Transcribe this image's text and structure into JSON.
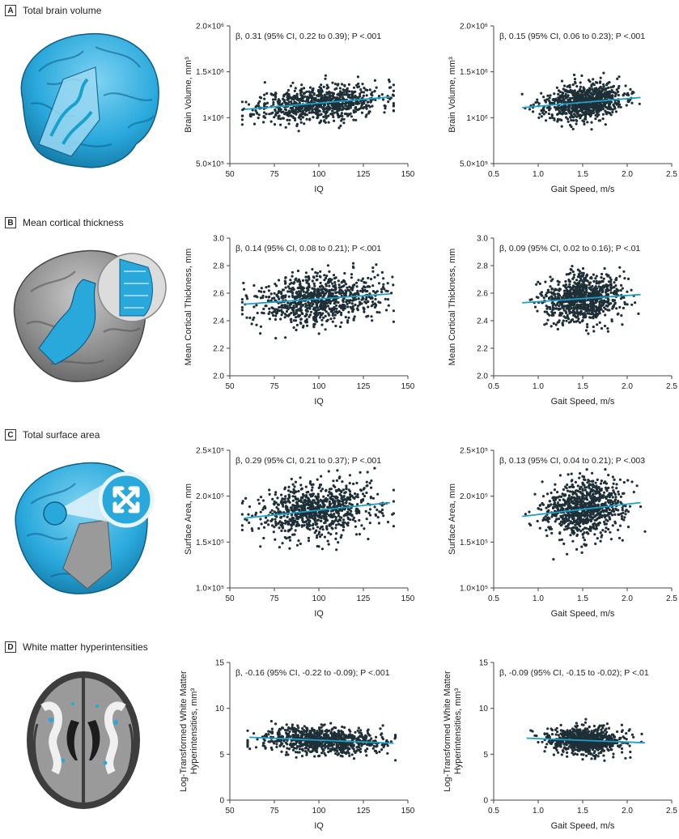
{
  "colors": {
    "point": "#1f2f37",
    "fit": "#1aa0cc",
    "brain_blue": "#29a8dc",
    "brain_gray": "#8c8c8c"
  },
  "panels": [
    {
      "letter": "A",
      "title": "Total brain volume",
      "brain_icon": "brain-volume-icon",
      "charts": [
        {
          "type": "scatter",
          "annotation": "β, 0.31 (95% CI, 0.22 to 0.39); P <.001",
          "xlabel": "IQ",
          "ylabel": "Brain Volume, mm³",
          "xlim": [
            50,
            150
          ],
          "xticks": [
            50,
            75,
            100,
            125,
            150
          ],
          "xtick_labels": [
            "50",
            "75",
            "100",
            "125",
            "150"
          ],
          "ylim": [
            500000,
            2000000
          ],
          "yticks": [
            500000,
            1000000,
            1500000,
            2000000
          ],
          "ytick_labels": [
            "5.0×10⁵",
            "1×10⁶",
            "1.5×10⁶",
            "2.0×10⁶"
          ],
          "fit": {
            "x": [
              58,
              140
            ],
            "y": [
              1090000,
              1225000
            ]
          },
          "cloud": {
            "n": 850,
            "x_mean": 100,
            "x_sd": 17,
            "x_min": 57,
            "x_max": 142,
            "y_sd": 95000,
            "seed": 11
          }
        },
        {
          "type": "scatter",
          "annotation": "β, 0.15 (95% CI, 0.06 to 0.23); P <.001",
          "xlabel": "Gait Speed, m/s",
          "ylabel": "Brain Volume, mm³",
          "xlim": [
            0.5,
            2.5
          ],
          "xticks": [
            0.5,
            1.0,
            1.5,
            2.0,
            2.5
          ],
          "xtick_labels": [
            "0.5",
            "1.0",
            "1.5",
            "2.0",
            "2.5"
          ],
          "ylim": [
            500000,
            2000000
          ],
          "yticks": [
            500000,
            1000000,
            1500000,
            2000000
          ],
          "ytick_labels": [
            "5.0×10⁵",
            "1×10⁶",
            "1.5×10⁶",
            "2.0×10⁶"
          ],
          "fit": {
            "x": [
              0.82,
              2.15
            ],
            "y": [
              1110000,
              1220000
            ]
          },
          "cloud": {
            "n": 850,
            "x_mean": 1.5,
            "x_sd": 0.22,
            "x_min": 0.82,
            "x_max": 2.2,
            "y_sd": 95000,
            "seed": 23
          }
        }
      ]
    },
    {
      "letter": "B",
      "title": "Mean cortical thickness",
      "brain_icon": "cortical-thickness-icon",
      "charts": [
        {
          "type": "scatter",
          "annotation": "β, 0.14 (95% CI, 0.08 to 0.21); P <.001",
          "xlabel": "IQ",
          "ylabel": "Mean Cortical Thickness, mm",
          "xlim": [
            50,
            150
          ],
          "xticks": [
            50,
            75,
            100,
            125,
            150
          ],
          "xtick_labels": [
            "50",
            "75",
            "100",
            "125",
            "150"
          ],
          "ylim": [
            2.0,
            3.0
          ],
          "yticks": [
            2.0,
            2.2,
            2.4,
            2.6,
            2.8,
            3.0
          ],
          "ytick_labels": [
            "2.0",
            "2.2",
            "2.4",
            "2.6",
            "2.8",
            "3.0"
          ],
          "fit": {
            "x": [
              58,
              140
            ],
            "y": [
              2.52,
              2.595
            ]
          },
          "cloud": {
            "n": 850,
            "x_mean": 100,
            "x_sd": 17,
            "x_min": 57,
            "x_max": 142,
            "y_sd": 0.09,
            "seed": 37
          }
        },
        {
          "type": "scatter",
          "annotation": "β, 0.09 (95% CI, 0.02 to 0.16); P <.01",
          "xlabel": "Gait Speed, m/s",
          "ylabel": "Mean Cortical Thickness, mm",
          "xlim": [
            0.5,
            2.5
          ],
          "xticks": [
            0.5,
            1.0,
            1.5,
            2.0,
            2.5
          ],
          "xtick_labels": [
            "0.5",
            "1.0",
            "1.5",
            "2.0",
            "2.5"
          ],
          "ylim": [
            2.0,
            3.0
          ],
          "yticks": [
            2.0,
            2.2,
            2.4,
            2.6,
            2.8,
            3.0
          ],
          "ytick_labels": [
            "2.0",
            "2.2",
            "2.4",
            "2.6",
            "2.8",
            "3.0"
          ],
          "fit": {
            "x": [
              0.82,
              2.15
            ],
            "y": [
              2.53,
              2.59
            ]
          },
          "cloud": {
            "n": 850,
            "x_mean": 1.5,
            "x_sd": 0.22,
            "x_min": 0.82,
            "x_max": 2.2,
            "y_sd": 0.09,
            "seed": 41
          }
        }
      ]
    },
    {
      "letter": "C",
      "title": "Total surface area",
      "brain_icon": "surface-area-icon",
      "charts": [
        {
          "type": "scatter",
          "annotation": "β, 0.29 (95% CI, 0.21 to 0.37); P <.001",
          "xlabel": "IQ",
          "ylabel": "Surface Area, mm",
          "xlim": [
            50,
            150
          ],
          "xticks": [
            50,
            75,
            100,
            125,
            150
          ],
          "xtick_labels": [
            "50",
            "75",
            "100",
            "125",
            "150"
          ],
          "ylim": [
            100000,
            250000
          ],
          "yticks": [
            100000,
            150000,
            200000,
            250000
          ],
          "ytick_labels": [
            "1.0×10⁵",
            "1.5×10⁵",
            "2.0×10⁵",
            "2.5×10⁵"
          ],
          "fit": {
            "x": [
              58,
              140
            ],
            "y": [
              176000,
              193000
            ]
          },
          "cloud": {
            "n": 850,
            "x_mean": 100,
            "x_sd": 17,
            "x_min": 57,
            "x_max": 142,
            "y_sd": 15000,
            "seed": 53
          }
        },
        {
          "type": "scatter",
          "annotation": "β, 0.13 (95% CI, 0.04 to 0.21); P <.003",
          "xlabel": "Gait Speed, m/s",
          "ylabel": "Surface Area, mm",
          "xlim": [
            0.5,
            2.5
          ],
          "xticks": [
            0.5,
            1.0,
            1.5,
            2.0,
            2.5
          ],
          "xtick_labels": [
            "0.5",
            "1.0",
            "1.5",
            "2.0",
            "2.5"
          ],
          "ylim": [
            100000,
            250000
          ],
          "yticks": [
            100000,
            150000,
            200000,
            250000
          ],
          "ytick_labels": [
            "1.0×10⁵",
            "1.5×10⁵",
            "2.0×10⁵",
            "2.5×10⁵"
          ],
          "fit": {
            "x": [
              0.82,
              2.15
            ],
            "y": [
              178000,
              193000
            ]
          },
          "cloud": {
            "n": 850,
            "x_mean": 1.5,
            "x_sd": 0.22,
            "x_min": 0.82,
            "x_max": 2.2,
            "y_sd": 15000,
            "seed": 67
          }
        }
      ]
    },
    {
      "letter": "D",
      "title": "White matter hyperintensities",
      "brain_icon": "white-matter-icon",
      "charts": [
        {
          "type": "scatter",
          "annotation": "β, -0.16 (95% CI, -0.22 to -0.09); P <.001",
          "xlabel": "IQ",
          "ylabel": "Log-Transformed White Matter Hyperintensities, mm³",
          "ylabel_lines": [
            "Log-Transformed White Matter",
            "Hyperintensities, mm³"
          ],
          "xlim": [
            50,
            150
          ],
          "xticks": [
            50,
            75,
            100,
            125,
            150
          ],
          "xtick_labels": [
            "50",
            "75",
            "100",
            "125",
            "150"
          ],
          "ylim": [
            0,
            15
          ],
          "yticks": [
            0,
            5,
            10,
            15
          ],
          "ytick_labels": [
            "0",
            "5",
            "10",
            "15"
          ],
          "fit": {
            "x": [
              61,
              142
            ],
            "y": [
              6.85,
              6.2
            ]
          },
          "cloud": {
            "n": 850,
            "x_mean": 102,
            "x_sd": 16,
            "x_min": 60,
            "x_max": 143,
            "y_sd": 0.7,
            "seed": 79
          }
        },
        {
          "type": "scatter",
          "annotation": "β, -0.09 (95% CI, -0.15 to -0.02); P <.01",
          "xlabel": "Gait Speed, m/s",
          "ylabel": "Log-Transformed White Matter Hyperintensities, mm³",
          "ylabel_lines": [
            "Log-Transformed White Matter",
            "Hyperintensities, mm³"
          ],
          "xlim": [
            0.5,
            2.5
          ],
          "xticks": [
            0.5,
            1.0,
            1.5,
            2.0,
            2.5
          ],
          "xtick_labels": [
            "0.5",
            "1.0",
            "1.5",
            "2.0",
            "2.5"
          ],
          "ylim": [
            0,
            15
          ],
          "yticks": [
            0,
            5,
            10,
            15
          ],
          "ytick_labels": [
            "0",
            "5",
            "10",
            "15"
          ],
          "fit": {
            "x": [
              0.87,
              2.2
            ],
            "y": [
              6.75,
              6.25
            ]
          },
          "cloud": {
            "n": 850,
            "x_mean": 1.52,
            "x_sd": 0.21,
            "x_min": 0.85,
            "x_max": 2.22,
            "y_sd": 0.7,
            "seed": 97
          }
        }
      ]
    }
  ]
}
